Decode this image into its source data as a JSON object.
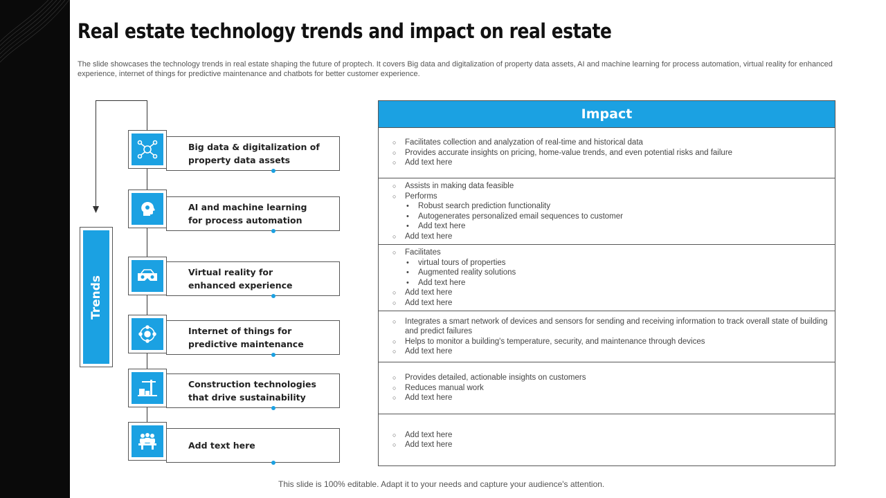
{
  "title": "Real estate technology trends and impact on real estate",
  "subtitle": "The slide showcases the technology trends in real estate shaping the future of proptech. It covers Big data and digitalization of property data assets, AI and machine learning for process automation, virtual reality for enhanced experience, internet of things for predictive maintenance and chatbots for better customer experience.",
  "trends_label": "Trends",
  "accent_color": "#1ba1e2",
  "trends": [
    {
      "label": "Big data & digitalization of\nproperty data assets",
      "icon": "data-network-icon"
    },
    {
      "label": "AI and machine learning\nfor process automation",
      "icon": "ai-head-icon"
    },
    {
      "label": "Virtual reality for\nenhanced experience",
      "icon": "vr-headset-icon"
    },
    {
      "label": "Internet of things for\npredictive maintenance",
      "icon": "iot-network-icon"
    },
    {
      "label": "Construction technologies\nthat drive sustainability",
      "icon": "construction-crane-icon"
    },
    {
      "label": "Add text here",
      "icon": "meeting-people-icon"
    }
  ],
  "impact": {
    "title": "Impact",
    "rows": [
      {
        "items": [
          {
            "text": "Facilitates collection and analyzation of  real-time and historical data"
          },
          {
            "text": "Provides accurate insights on pricing, home-value trends, and even potential risks and failure"
          },
          {
            "text": "Add text here"
          }
        ]
      },
      {
        "items": [
          {
            "text": "Assists in making data feasible"
          },
          {
            "text": "Performs"
          },
          {
            "text": "Robust search prediction functionality",
            "sub": true
          },
          {
            "text": "Autogenerates personalized email sequences to customer",
            "sub": true
          },
          {
            "text": "Add text here",
            "sub": true
          },
          {
            "text": "Add text here"
          }
        ]
      },
      {
        "items": [
          {
            "text": "Facilitates"
          },
          {
            "text": "virtual tours of properties",
            "sub": true
          },
          {
            "text": "Augmented reality solutions",
            "sub": true
          },
          {
            "text": "Add text here",
            "sub": true
          },
          {
            "text": "Add text here"
          },
          {
            "text": "Add text here"
          }
        ]
      },
      {
        "items": [
          {
            "text": "Integrates a smart network of devices and sensors for sending and receiving information to track overall state of building and predict failures"
          },
          {
            "text": "Helps to monitor a building's temperature, security, and maintenance through devices"
          },
          {
            "text": "Add text here"
          }
        ]
      },
      {
        "items": [
          {
            "text": "Provides detailed, actionable insights on customers"
          },
          {
            "text": "Reduces manual work"
          },
          {
            "text": "Add text here"
          }
        ]
      },
      {
        "items": [
          {
            "text": "Add text here"
          },
          {
            "text": "Add text here"
          }
        ]
      }
    ]
  },
  "footer": "This slide is 100% editable. Adapt it to your needs and capture your audience's attention."
}
